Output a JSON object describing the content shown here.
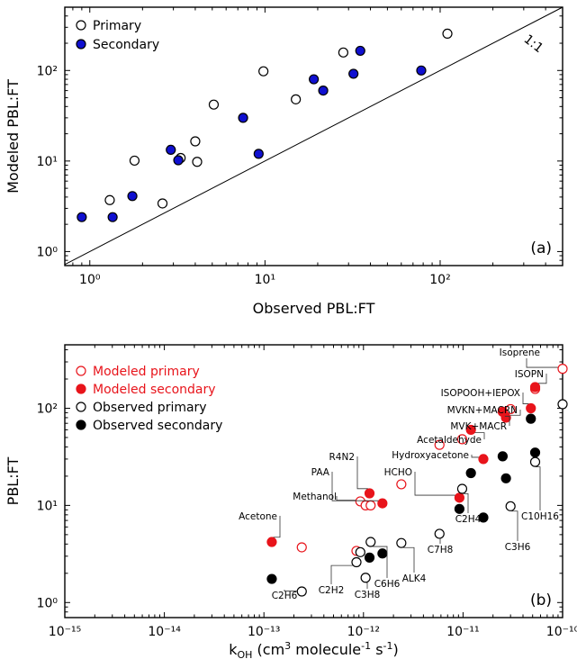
{
  "colors": {
    "primary_fill": "#ffffff",
    "secondary_fill_a": "#1010d0",
    "modeled": "#e8141b",
    "observed": "#000000"
  },
  "chart_data": [
    {
      "type": "scatter",
      "panel_label": "(a)",
      "xlabel": "Observed PBL:FT",
      "ylabel": "Modeled PBL:FT",
      "xscale": "log",
      "yscale": "log",
      "xlim": [
        0.72,
        500
      ],
      "ylim": [
        0.7,
        500
      ],
      "x_ticks": [
        1,
        10,
        100
      ],
      "x_tick_labels": [
        "10⁰",
        "10¹",
        "10²"
      ],
      "y_ticks": [
        1,
        10,
        100
      ],
      "y_tick_labels": [
        "10⁰",
        "10¹",
        "10²"
      ],
      "reference_line": {
        "label": "1:1"
      },
      "legend_position": "top-left",
      "series": [
        {
          "name": "Primary",
          "marker": "open-circle",
          "points": [
            [
              1.3,
              3.7
            ],
            [
              1.8,
              10.1
            ],
            [
              2.6,
              3.4
            ],
            [
              3.3,
              10.8
            ],
            [
              4.0,
              16.5
            ],
            [
              4.1,
              9.8
            ],
            [
              5.1,
              42
            ],
            [
              9.8,
              98
            ],
            [
              15,
              48
            ],
            [
              28,
              158
            ],
            [
              110,
              255
            ]
          ]
        },
        {
          "name": "Secondary",
          "marker": "filled-circle",
          "points": [
            [
              0.9,
              2.4
            ],
            [
              1.35,
              2.4
            ],
            [
              1.75,
              4.1
            ],
            [
              2.9,
              13.3
            ],
            [
              3.2,
              10.2
            ],
            [
              7.5,
              30
            ],
            [
              9.2,
              12
            ],
            [
              19,
              80
            ],
            [
              21.5,
              60
            ],
            [
              32,
              92
            ],
            [
              35,
              165
            ],
            [
              78,
              100
            ]
          ]
        }
      ]
    },
    {
      "type": "scatter",
      "panel_label": "(b)",
      "xlabel": "k",
      "xlabel_sub": "OH",
      "xlabel_rest": " (cm",
      "xlabel_sup1": "3",
      "xlabel_mid": " molecule",
      "xlabel_sup2": "-1",
      "xlabel_tail": " s",
      "xlabel_sup3": "-1",
      "xlabel_end": ")",
      "ylabel": "PBL:FT",
      "xscale": "log",
      "yscale": "log",
      "xlim": [
        1e-15,
        1e-10
      ],
      "ylim": [
        0.7,
        450
      ],
      "x_ticks": [
        1e-15,
        1e-14,
        1e-13,
        1e-12,
        1e-11,
        1e-10
      ],
      "x_tick_labels": [
        "10⁻¹⁵",
        "10⁻¹⁴",
        "10⁻¹³",
        "10⁻¹²",
        "10⁻¹¹",
        "10⁻¹⁰"
      ],
      "y_ticks": [
        1,
        10,
        100
      ],
      "y_tick_labels": [
        "10⁰",
        "10¹",
        "10²"
      ],
      "legend_position": "top-left",
      "series": [
        {
          "name": "Modeled primary",
          "marker": "open-circle",
          "color": "red",
          "points": [
            [
              2.4e-13,
              3.7
            ],
            [
              8.5e-13,
              3.4
            ],
            [
              9.3e-13,
              11
            ],
            [
              1.05e-12,
              10
            ],
            [
              1.18e-12,
              10
            ],
            [
              2.4e-12,
              16.5
            ],
            [
              5.8e-12,
              42
            ],
            [
              9.8e-12,
              48
            ],
            [
              3e-11,
              98
            ],
            [
              5.3e-11,
              158
            ],
            [
              1e-10,
              255
            ]
          ]
        },
        {
          "name": "Modeled secondary",
          "marker": "filled-circle",
          "color": "red",
          "points": [
            [
              1.2e-13,
              4.2
            ],
            [
              1.15e-12,
              13.3
            ],
            [
              1.55e-12,
              10.5
            ],
            [
              9.2e-12,
              12
            ],
            [
              1.2e-11,
              60
            ],
            [
              1.6e-11,
              30
            ],
            [
              2.5e-11,
              92
            ],
            [
              2.7e-11,
              80
            ],
            [
              4.8e-11,
              100
            ],
            [
              5.3e-11,
              165
            ]
          ]
        },
        {
          "name": "Observed primary",
          "marker": "open-circle",
          "color": "black",
          "points": [
            [
              2.4e-13,
              1.3
            ],
            [
              8.5e-13,
              2.6
            ],
            [
              9.3e-13,
              3.3
            ],
            [
              1.05e-12,
              1.8
            ],
            [
              1.18e-12,
              4.2
            ],
            [
              2.4e-12,
              4.1
            ],
            [
              5.8e-12,
              5.1
            ],
            [
              9.8e-12,
              14.8
            ],
            [
              3e-11,
              9.8
            ],
            [
              5.3e-11,
              28
            ],
            [
              1e-10,
              110
            ]
          ]
        },
        {
          "name": "Observed secondary",
          "marker": "filled-circle",
          "color": "black",
          "points": [
            [
              1.2e-13,
              1.75
            ],
            [
              1.15e-12,
              2.9
            ],
            [
              1.55e-12,
              3.2
            ],
            [
              9.2e-12,
              9.2
            ],
            [
              1.2e-11,
              21.5
            ],
            [
              1.6e-11,
              7.5
            ],
            [
              2.5e-11,
              32
            ],
            [
              2.7e-11,
              19
            ],
            [
              4.8e-11,
              78
            ],
            [
              5.3e-11,
              35
            ]
          ]
        }
      ],
      "annotations": [
        {
          "text": "Isoprene",
          "x": 1e-10,
          "y": 255
        },
        {
          "text": "ISOPN",
          "x": 5.3e-11,
          "y": 165
        },
        {
          "text": "ISOPOOH+IEPOX",
          "x": 4.8e-11,
          "y": 100
        },
        {
          "text": "MVKN+MACRN",
          "x": 2.7e-11,
          "y": 80
        },
        {
          "text": "MVK+MACR",
          "x": 2.5e-11,
          "y": 92
        },
        {
          "text": "Acetaldehyde",
          "x": 1.2e-11,
          "y": 60
        },
        {
          "text": "Hydroxyacetone",
          "x": 1.6e-11,
          "y": 30
        },
        {
          "text": "HCHO",
          "x": 9.2e-12,
          "y": 12
        },
        {
          "text": "R4N2",
          "x": 1.15e-12,
          "y": 13.3
        },
        {
          "text": "PAA",
          "x": 1.55e-12,
          "y": 10.5
        },
        {
          "text": "Methanol",
          "x": 9.3e-13,
          "y": 11
        },
        {
          "text": "Acetone",
          "x": 1.2e-13,
          "y": 4.2
        },
        {
          "text": "C7H8",
          "x": 5.8e-12,
          "y": 5.1
        },
        {
          "text": "C2H4",
          "x": 9.8e-12,
          "y": 14.8
        },
        {
          "text": "C10H16",
          "x": 5.3e-11,
          "y": 28
        },
        {
          "text": "C3H6",
          "x": 3e-11,
          "y": 9.8
        },
        {
          "text": "ALK4",
          "x": 2.4e-12,
          "y": 4.1
        },
        {
          "text": "C6H6",
          "x": 1.18e-12,
          "y": 4.2
        },
        {
          "text": "C3H8",
          "x": 1.05e-12,
          "y": 1.8
        },
        {
          "text": "C2H2",
          "x": 8.5e-13,
          "y": 2.6
        },
        {
          "text": "C2H6",
          "x": 2.4e-13,
          "y": 1.3
        }
      ]
    }
  ]
}
